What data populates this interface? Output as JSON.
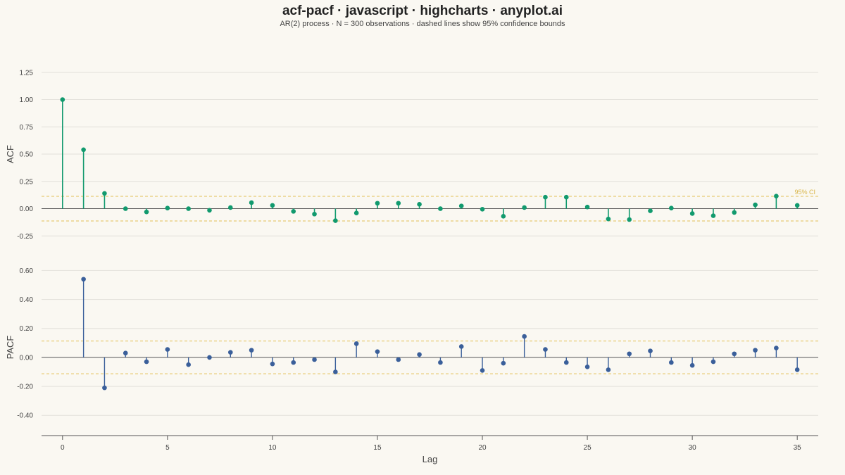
{
  "title": "acf-pacf · javascript · highcharts · anyplot.ai",
  "subtitle": "AR(2) process · N = 300 observations · dashed lines show 95% confidence bounds",
  "colors": {
    "background": "#faf8f2",
    "acf": "#119a6e",
    "pacf": "#3a5f9a",
    "ci": "#e3c055",
    "grid": "#e2e0da",
    "axis": "#555555"
  },
  "chart_data": [
    {
      "type": "stem",
      "name": "ACF",
      "ylabel": "ACF",
      "ylim": [
        -0.3,
        1.3
      ],
      "yticks": [
        -0.25,
        0.0,
        0.25,
        0.5,
        0.75,
        1.0,
        1.25
      ],
      "ytick_labels": [
        "-0.25",
        "0.00",
        "0.25",
        "0.50",
        "0.75",
        "1.00",
        "1.25"
      ],
      "ci": 0.113,
      "ci_label": "95% CI",
      "x": [
        0,
        1,
        2,
        3,
        4,
        5,
        6,
        7,
        8,
        9,
        10,
        11,
        12,
        13,
        14,
        15,
        16,
        17,
        18,
        19,
        20,
        21,
        22,
        23,
        24,
        25,
        26,
        27,
        28,
        29,
        30,
        31,
        32,
        33,
        34,
        35
      ],
      "values": [
        1.0,
        0.54,
        0.14,
        0.0,
        -0.03,
        0.005,
        0.0,
        -0.015,
        0.01,
        0.055,
        0.03,
        -0.025,
        -0.05,
        -0.11,
        -0.04,
        0.05,
        0.05,
        0.04,
        0.0,
        0.025,
        -0.005,
        -0.07,
        0.01,
        0.105,
        0.105,
        0.015,
        -0.095,
        -0.1,
        -0.02,
        0.005,
        -0.045,
        -0.065,
        -0.035,
        0.035,
        0.115,
        0.03
      ]
    },
    {
      "type": "stem",
      "name": "PACF",
      "ylabel": "PACF",
      "ylim": [
        -0.53,
        0.67
      ],
      "yticks": [
        -0.4,
        -0.2,
        0.0,
        0.2,
        0.4,
        0.6
      ],
      "ytick_labels": [
        "-0.40",
        "-0.20",
        "0.00",
        "0.20",
        "0.40",
        "0.60"
      ],
      "ci": 0.113,
      "x": [
        1,
        2,
        3,
        4,
        5,
        6,
        7,
        8,
        9,
        10,
        11,
        12,
        13,
        14,
        15,
        16,
        17,
        18,
        19,
        20,
        21,
        22,
        23,
        24,
        25,
        26,
        27,
        28,
        29,
        30,
        31,
        32,
        33,
        34,
        35
      ],
      "values": [
        0.54,
        -0.21,
        0.03,
        -0.03,
        0.055,
        -0.05,
        0.0,
        0.035,
        0.05,
        -0.045,
        -0.035,
        -0.015,
        -0.1,
        0.095,
        0.04,
        -0.015,
        0.02,
        -0.035,
        0.075,
        -0.09,
        -0.04,
        0.145,
        0.055,
        -0.035,
        -0.065,
        -0.085,
        0.025,
        0.045,
        -0.035,
        -0.055,
        -0.03,
        0.025,
        0.05,
        0.065,
        -0.085
      ]
    }
  ],
  "xaxis": {
    "label": "Lag",
    "range": [
      -1,
      36
    ],
    "ticks": [
      0,
      5,
      10,
      15,
      20,
      25,
      30,
      35
    ]
  }
}
